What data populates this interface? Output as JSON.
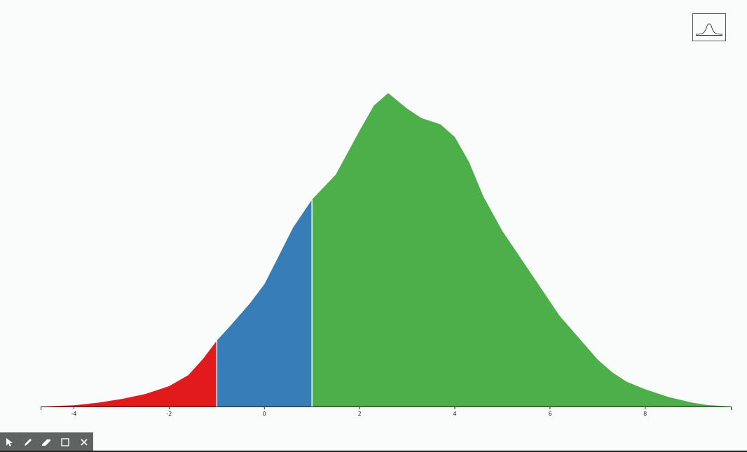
{
  "chart_data": {
    "type": "area",
    "title": "",
    "xlabel": "",
    "ylabel": "",
    "xlim": [
      -4.7,
      9.8
    ],
    "ylim": [
      0,
      1
    ],
    "xticks": [
      -4,
      -2,
      0,
      2,
      4,
      6,
      8
    ],
    "grid": false,
    "density_curve": {
      "x": [
        -4.7,
        -4,
        -3.5,
        -3,
        -2.5,
        -2,
        -1.6,
        -1.3,
        -1.0,
        -0.7,
        -0.3,
        0,
        0.3,
        0.6,
        1.0,
        1.5,
        2.0,
        2.3,
        2.6,
        3.0,
        3.3,
        3.7,
        4.0,
        4.3,
        4.6,
        5.0,
        5.4,
        5.8,
        6.2,
        6.6,
        7.0,
        7.3,
        7.6,
        8.0,
        8.5,
        9.0,
        9.3,
        9.8
      ],
      "y": [
        0,
        0.004,
        0.012,
        0.024,
        0.04,
        0.065,
        0.1,
        0.15,
        0.21,
        0.26,
        0.33,
        0.39,
        0.48,
        0.57,
        0.66,
        0.74,
        0.88,
        0.96,
        1.0,
        0.95,
        0.92,
        0.9,
        0.86,
        0.78,
        0.67,
        0.56,
        0.47,
        0.38,
        0.29,
        0.22,
        0.15,
        0.11,
        0.08,
        0.055,
        0.03,
        0.012,
        0.005,
        0
      ]
    },
    "regions": [
      {
        "from": -4.7,
        "to": -1.0,
        "color": "#e31a1c"
      },
      {
        "from": -1.0,
        "to": 1.0,
        "color": "#377eb8"
      },
      {
        "from": 1.0,
        "to": 9.8,
        "color": "#4daf4a"
      }
    ]
  },
  "toolbar": {
    "tools": [
      "pointer-icon",
      "pencil-icon",
      "eraser-icon",
      "rectangle-icon",
      "close-icon"
    ]
  }
}
